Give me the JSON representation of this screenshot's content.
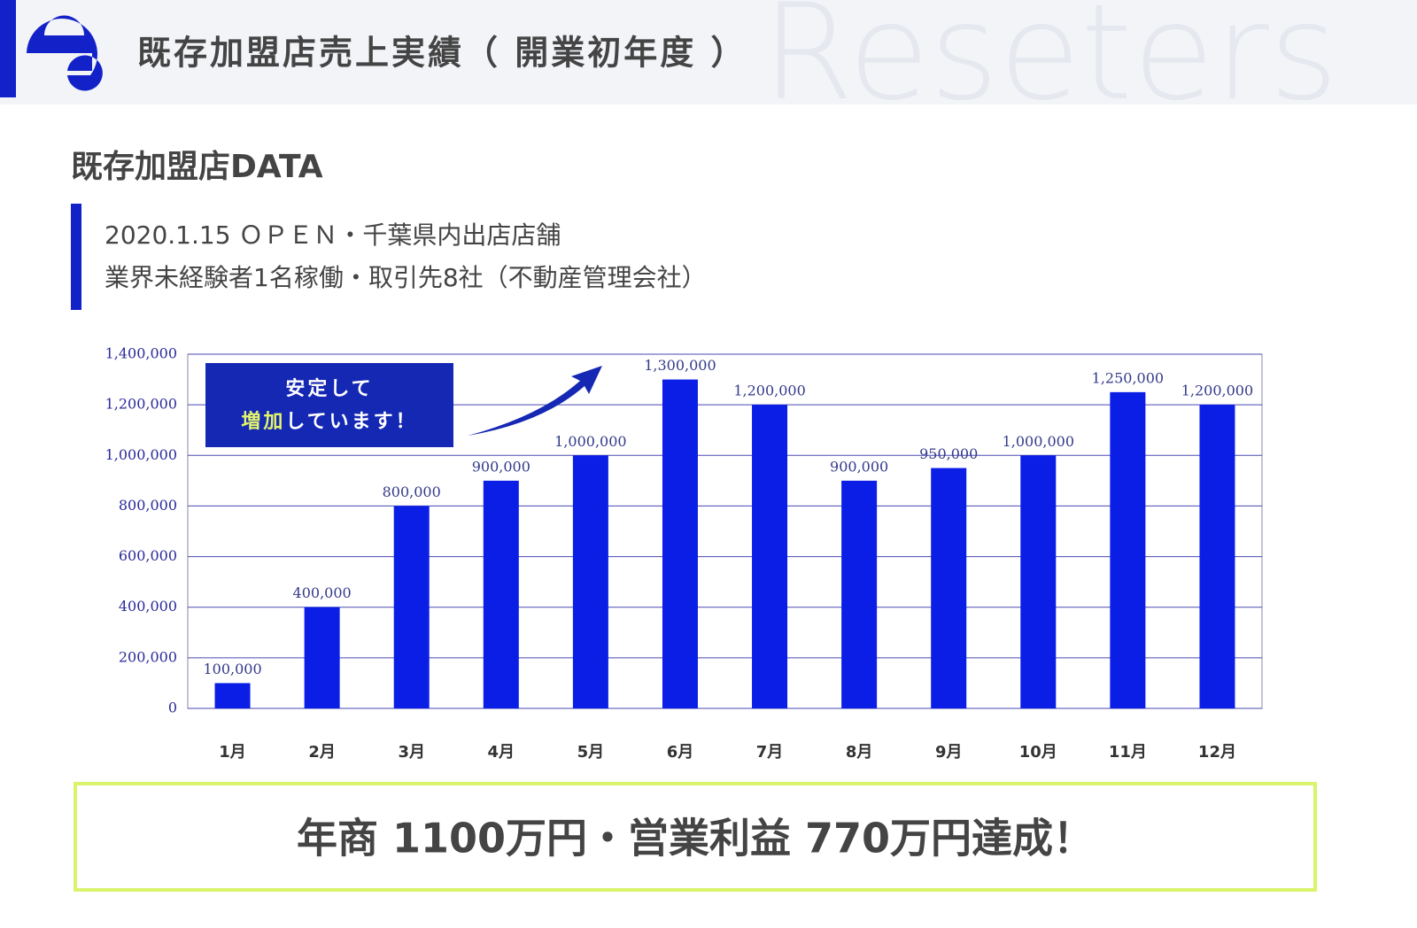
{
  "header": {
    "title": "既存加盟店売上実績（ 開業初年度 ）",
    "watermark": "Reseters"
  },
  "section_title": "既存加盟店DATA",
  "info_lines": [
    "2020.1.15 ＯＰＥＮ・千葉県内出店店舗",
    "業界未経験者1名稼働・取引先8社（不動産管理会社）"
  ],
  "annotation": {
    "line1": "安定して",
    "highlight": "増加",
    "rest": "しています！"
  },
  "summary": "年商 1100万円・営業利益 770万円達成！",
  "chart_data": {
    "type": "bar",
    "categories": [
      "1月",
      "2月",
      "3月",
      "4月",
      "5月",
      "6月",
      "7月",
      "8月",
      "9月",
      "10月",
      "11月",
      "12月"
    ],
    "values": [
      100000,
      400000,
      800000,
      900000,
      1000000,
      1300000,
      1200000,
      900000,
      950000,
      1000000,
      1250000,
      1200000
    ],
    "value_labels": [
      "100,000",
      "400,000",
      "800,000",
      "900,000",
      "1,000,000",
      "1,300,000",
      "1,200,000",
      "900,000",
      "950,000",
      "1,000,000",
      "1,250,000",
      "1,200,000"
    ],
    "color": "#0a1ee6",
    "ylim": [
      0,
      1400000
    ],
    "yticks": [
      0,
      {
        "value": 200000,
        "label": "200,000"
      },
      {
        "value": 400000,
        "label": "400,000"
      },
      {
        "value": 600000,
        "label": "600,000"
      },
      {
        "value": 800000,
        "label": "800,000"
      },
      {
        "value": 1000000,
        "label": "1,000,000"
      },
      {
        "value": 1200000,
        "label": "1,200,000"
      },
      {
        "value": 1400000,
        "label": "1,400,000"
      }
    ],
    "grid": true
  }
}
